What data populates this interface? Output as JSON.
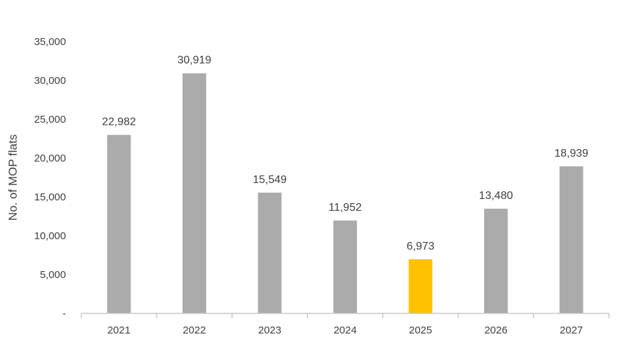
{
  "chart_data": {
    "type": "bar",
    "title": "",
    "xlabel": "",
    "ylabel": "No. of MOP flats",
    "categories": [
      "2021",
      "2022",
      "2023",
      "2024",
      "2025",
      "2026",
      "2027"
    ],
    "values": [
      22982,
      30919,
      15549,
      11952,
      6973,
      13480,
      18939
    ],
    "data_labels": [
      "22,982",
      "30,919",
      "15,549",
      "11,952",
      "6,973",
      "13,480",
      "18,939"
    ],
    "bar_colors": [
      "#ababab",
      "#ababab",
      "#ababab",
      "#ababab",
      "#ffc000",
      "#ababab",
      "#ababab"
    ],
    "ylim": [
      0,
      35000
    ],
    "yticks": [
      0,
      5000,
      10000,
      15000,
      20000,
      25000,
      30000,
      35000
    ],
    "ytick_labels": [
      "-",
      "5,000",
      "10,000",
      "15,000",
      "20,000",
      "25,000",
      "30,000",
      "35,000"
    ],
    "grid": false,
    "legend": "none",
    "colors": {
      "bar": "#ababab",
      "highlight": "#ffc000",
      "axis": "#c8c8c8",
      "text": "#404040"
    }
  }
}
